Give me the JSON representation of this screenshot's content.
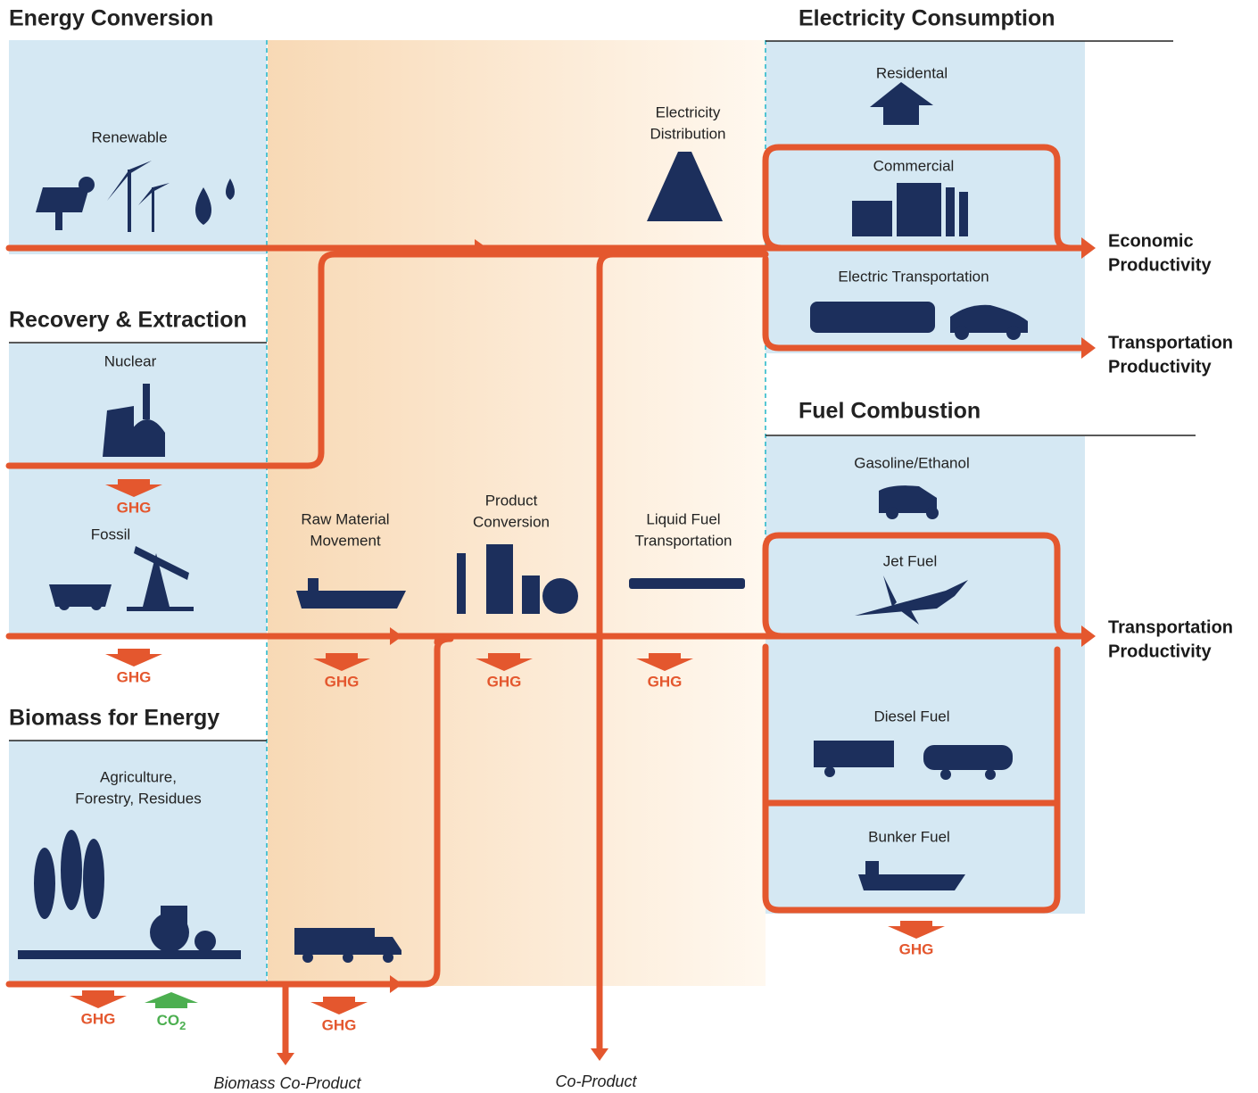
{
  "sections": [
    {
      "title": "Energy Conversion"
    },
    {
      "title": "Recovery & Extraction"
    },
    {
      "title": "Biomass for Energy"
    },
    {
      "title": "Electricity Consumption"
    },
    {
      "title": "Fuel Combustion"
    }
  ],
  "nodes": [
    {
      "label": [
        "Renewable"
      ]
    },
    {
      "label": [
        "Nuclear"
      ]
    },
    {
      "label": [
        "Fossil"
      ]
    },
    {
      "label": [
        "Agriculture,",
        "Forestry, Residues"
      ]
    },
    {
      "label": [
        "Electricity",
        "Distribution"
      ]
    },
    {
      "label": [
        "Raw Material",
        "Movement"
      ]
    },
    {
      "label": [
        "Product",
        "Conversion"
      ]
    },
    {
      "label": [
        "Liquid Fuel",
        "Transportation"
      ]
    },
    {
      "label": [
        "Residental"
      ]
    },
    {
      "label": [
        "Commercial"
      ]
    },
    {
      "label": [
        "Electric Transportation"
      ]
    },
    {
      "label": [
        "Gasoline/Ethanol"
      ]
    },
    {
      "label": [
        "Jet Fuel"
      ]
    },
    {
      "label": [
        "Diesel Fuel"
      ]
    },
    {
      "label": [
        "Bunker Fuel"
      ]
    }
  ],
  "outputs": [
    {
      "label": [
        "Economic",
        "Productivity"
      ]
    },
    {
      "label": [
        "Transportation",
        "Productivity"
      ]
    },
    {
      "label": [
        "Transportation",
        "Productivity"
      ]
    },
    {
      "label": [
        "Biomass Co-Product"
      ]
    },
    {
      "label": [
        "Co-Product"
      ]
    }
  ],
  "emissions": [
    {
      "label": "GHG"
    },
    {
      "label": "GHG"
    },
    {
      "label": "GHG"
    },
    {
      "label": "GHG"
    },
    {
      "label": "GHG"
    },
    {
      "label": "GHG"
    },
    {
      "label": "GHG"
    },
    {
      "label": "GHG"
    },
    {
      "label": "CO",
      "subscript": "2"
    }
  ]
}
